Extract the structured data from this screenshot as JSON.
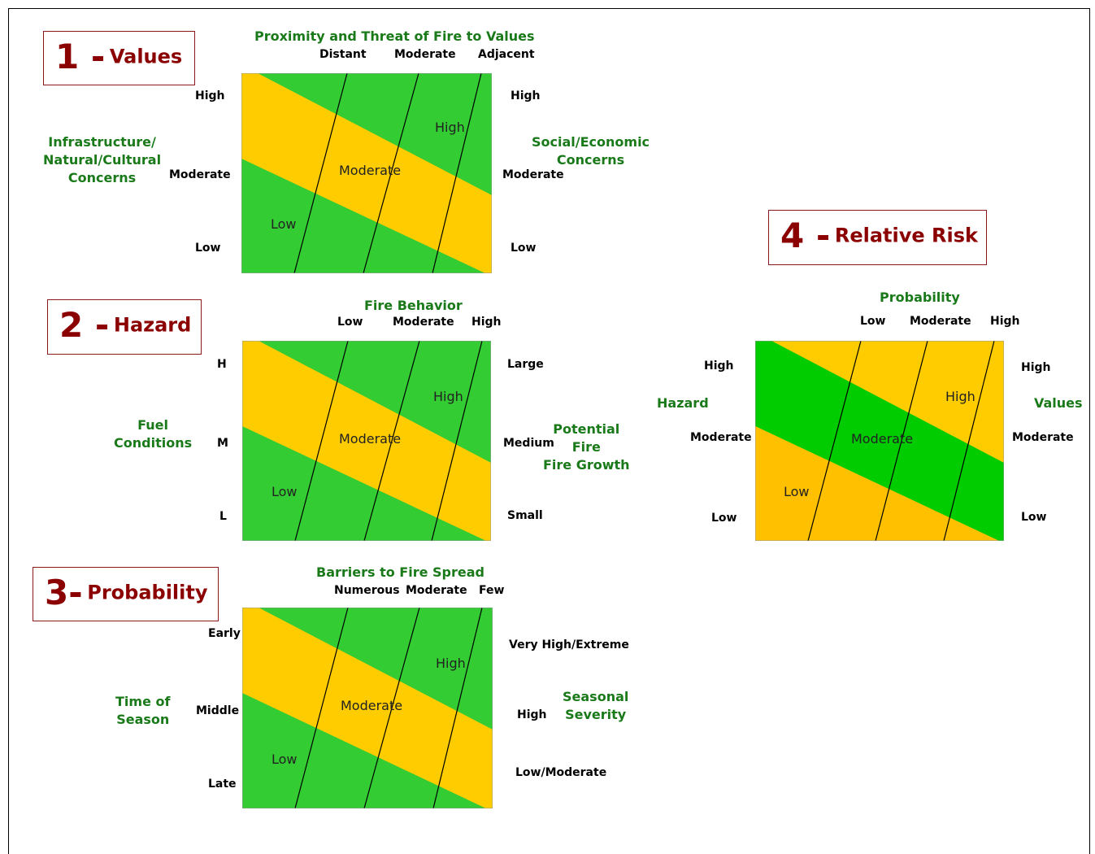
{
  "colors": {
    "green": "#33cc33",
    "yellow": "#ffcc00",
    "bright_green": "#00cc00",
    "orange": "#ffc000",
    "title_red": "#8b0000",
    "label_green": "#1a7a1a"
  },
  "panel1": {
    "number": "1 -",
    "title": "Values",
    "top_title": "Proximity and Threat of Fire to Values",
    "top_ticks": [
      "Distant",
      "Moderate",
      "Adjacent"
    ],
    "left_title": "Infrastructure/\nNatural/Cultural\nConcerns",
    "left_ticks": [
      "High",
      "Moderate",
      "Low"
    ],
    "right_title": "Social/Economic\nConcerns",
    "right_ticks": [
      "High",
      "Moderate",
      "Low"
    ],
    "zones": [
      "High",
      "Moderate",
      "Low"
    ]
  },
  "panel2": {
    "number": "2 -",
    "title": "Hazard",
    "top_title": "Fire Behavior",
    "top_ticks": [
      "Low",
      "Moderate",
      "High"
    ],
    "left_title": "Fuel\nConditions",
    "left_ticks": [
      "H",
      "M",
      "L"
    ],
    "right_title": "Potential\nFire\nFire Growth",
    "right_ticks": [
      "Large",
      "Medium",
      "Small"
    ],
    "zones": [
      "High",
      "Moderate",
      "Low"
    ]
  },
  "panel3": {
    "number": "3-",
    "title": "Probability",
    "top_title": "Barriers to Fire Spread",
    "top_ticks": [
      "Numerous",
      "Moderate",
      "Few"
    ],
    "left_title": "Time of\nSeason",
    "left_ticks": [
      "Early",
      "Middle",
      "Late"
    ],
    "right_title": "Seasonal\nSeverity",
    "right_ticks": [
      "Very High/Extreme",
      "High",
      "Low/Moderate"
    ],
    "zones": [
      "High",
      "Moderate",
      "Low"
    ]
  },
  "panel4": {
    "number": "4 -",
    "title": "Relative Risk",
    "top_title": "Probability",
    "top_ticks": [
      "Low",
      "Moderate",
      "High"
    ],
    "left_title": "Hazard",
    "left_ticks": [
      "High",
      "Moderate",
      "Low"
    ],
    "right_title": "Values",
    "right_ticks": [
      "High",
      "Moderate",
      "Low"
    ],
    "zones": [
      "High",
      "Moderate",
      "Low"
    ]
  }
}
